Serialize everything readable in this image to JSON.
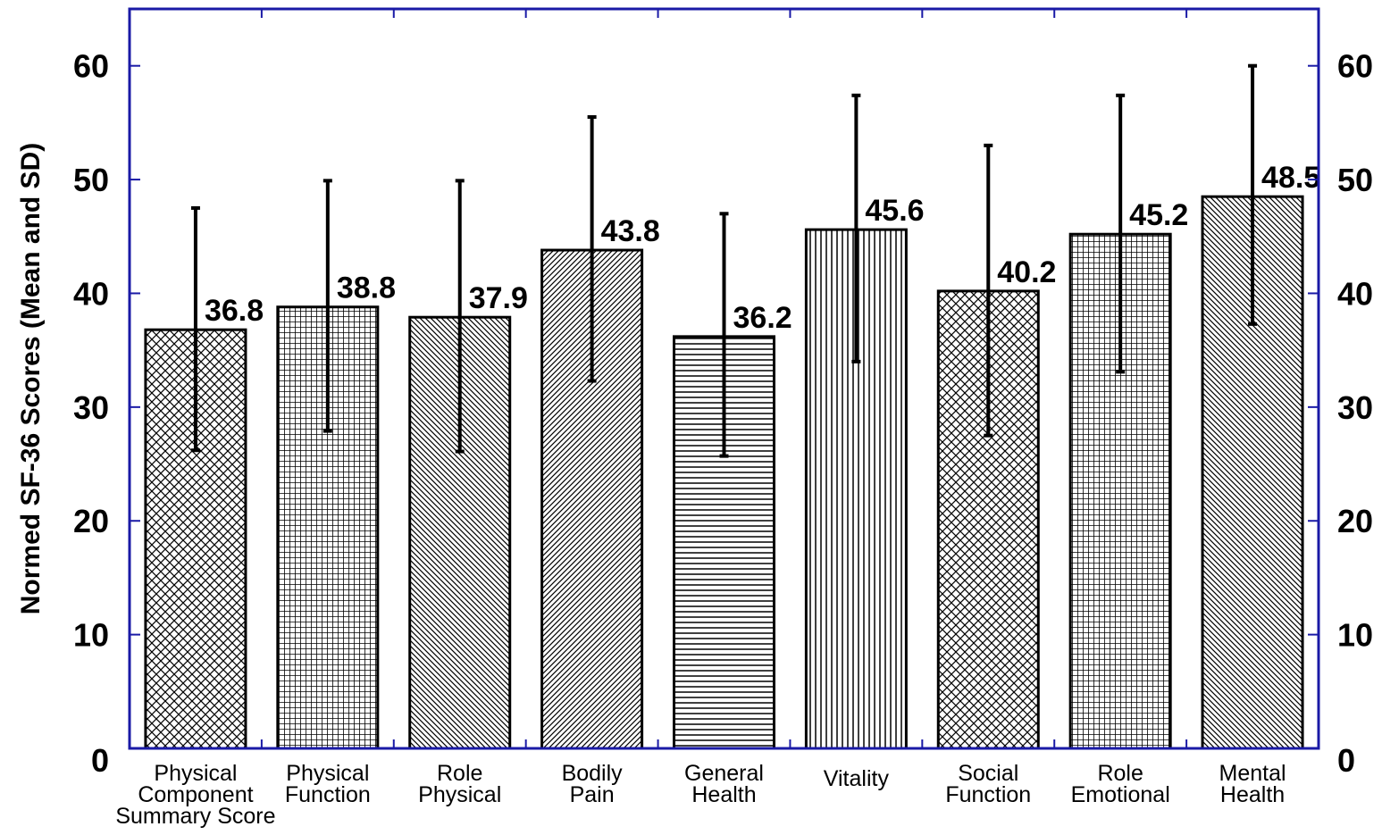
{
  "chart_data": {
    "type": "bar",
    "ylabel": "Normed SF-36 Scores (Mean and SD)",
    "ylim": [
      0,
      65
    ],
    "yticks": [
      0,
      10,
      20,
      30,
      40,
      50,
      60
    ],
    "grid": false,
    "error_bars": "SD",
    "categories": [
      [
        "Physical",
        "Component",
        "Summary Score"
      ],
      [
        "Physical",
        "Function"
      ],
      [
        "Role",
        "Physical"
      ],
      [
        "Bodily",
        "Pain"
      ],
      [
        "General",
        "Health"
      ],
      [
        "Vitality"
      ],
      [
        "Social",
        "Function"
      ],
      [
        "Role",
        "Emotional"
      ],
      [
        "Mental",
        "Health"
      ]
    ],
    "values": [
      36.8,
      38.8,
      37.9,
      43.8,
      36.2,
      45.6,
      40.2,
      45.2,
      48.5
    ],
    "value_labels": [
      "36.8",
      "38.8",
      "37.9",
      "43.8",
      "36.2",
      "45.6",
      "40.2",
      "45.2",
      "48.5"
    ],
    "error_low": [
      26.2,
      27.9,
      26.1,
      32.3,
      25.7,
      34.0,
      27.5,
      33.1,
      37.3
    ],
    "error_high": [
      47.5,
      49.9,
      49.9,
      55.5,
      47.0,
      57.4,
      53.0,
      57.4,
      60.0
    ],
    "patterns": [
      "crosshatch-diagonal",
      "grid",
      "diagonal-down",
      "diagonal-up",
      "horizontal",
      "vertical",
      "crosshatch-diagonal",
      "grid",
      "diagonal-down"
    ],
    "axis_color": "#1a1aa6",
    "bar_stroke": "#000000"
  }
}
